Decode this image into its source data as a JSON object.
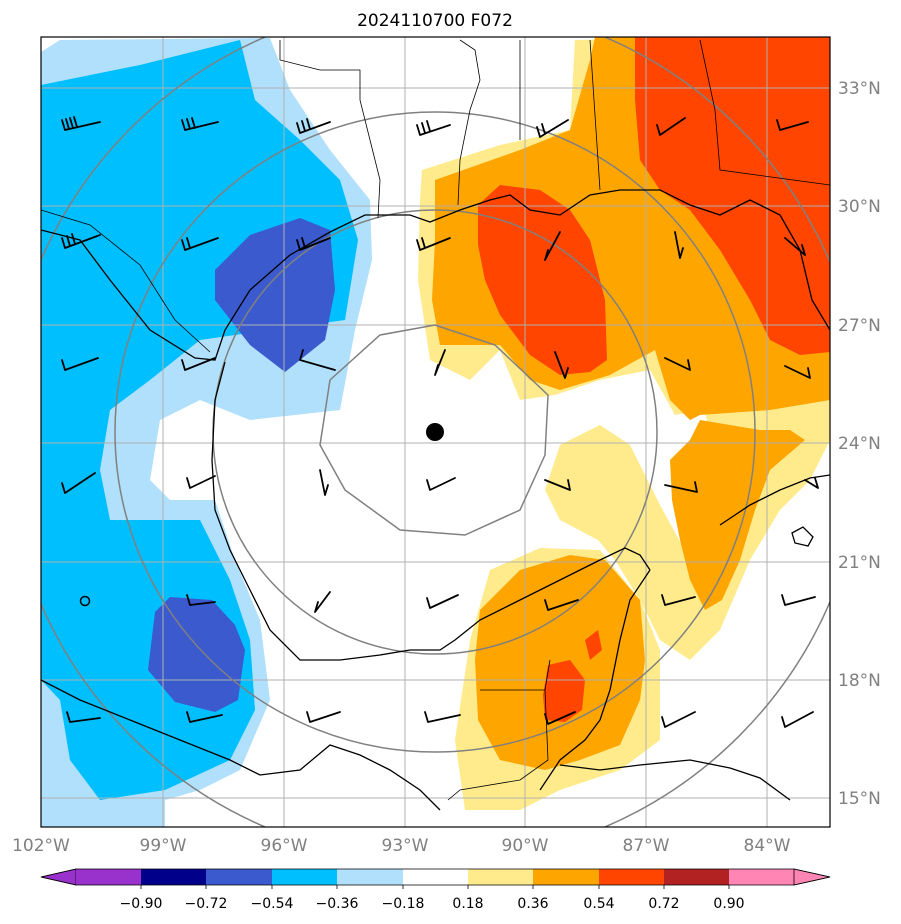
{
  "title": "2024110700 F072",
  "map": {
    "lon_range": [
      -102,
      -82.5
    ],
    "lat_range": [
      14.3,
      34.3
    ],
    "lon_ticks": [
      {
        "value": -102,
        "label": "102°W"
      },
      {
        "value": -99,
        "label": "99°W"
      },
      {
        "value": -96,
        "label": "96°W"
      },
      {
        "value": -93,
        "label": "93°W"
      },
      {
        "value": -90,
        "label": "90°W"
      },
      {
        "value": -87,
        "label": "87°W"
      },
      {
        "value": -84,
        "label": "84°W"
      }
    ],
    "lat_ticks": [
      {
        "value": 15,
        "label": "15°N"
      },
      {
        "value": 18,
        "label": "18°N"
      },
      {
        "value": 21,
        "label": "21°N"
      },
      {
        "value": 24,
        "label": "24°N"
      },
      {
        "value": 27,
        "label": "27°N"
      },
      {
        "value": 30,
        "label": "30°N"
      },
      {
        "value": 33,
        "label": "33°N"
      }
    ],
    "center_marker": {
      "lon": -92.3,
      "lat": 24.3
    },
    "range_rings": 4,
    "grid": true
  },
  "colorbar": {
    "boundaries": [
      "−0.90",
      "−0.72",
      "−0.54",
      "−0.36",
      "−0.18",
      "0.18",
      "0.36",
      "0.54",
      "0.72",
      "0.90"
    ],
    "colors": [
      "#9932cc",
      "#00008b",
      "#3a5acd",
      "#00bfff",
      "#b0e0fb",
      "#ffffff",
      "#ffeb8c",
      "#ffa500",
      "#ff4500",
      "#b22222",
      "#ff85b5"
    ],
    "extend": "both"
  }
}
